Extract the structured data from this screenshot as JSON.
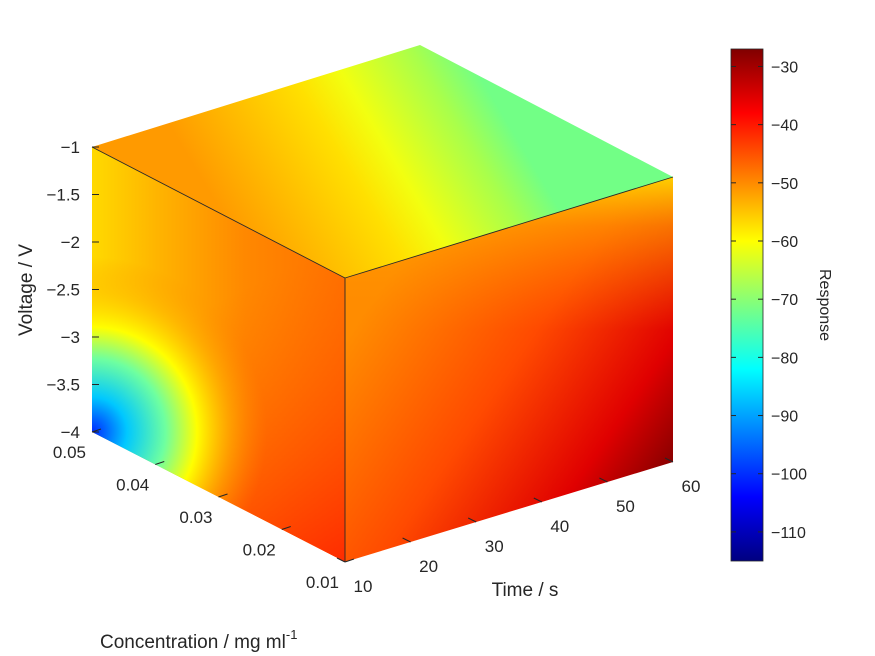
{
  "chart_data": {
    "type": "heatmap",
    "subtype": "3d-slice-cube",
    "title": "",
    "axes": {
      "x": {
        "label": "Time / s",
        "range": [
          10,
          60
        ],
        "ticks": [
          10,
          20,
          30,
          40,
          50,
          60
        ]
      },
      "y": {
        "label_main": "Concentration / mg ml",
        "label_sup": "-1",
        "range": [
          0.01,
          0.05
        ],
        "ticks": [
          0.01,
          0.02,
          0.03,
          0.04,
          0.05
        ]
      },
      "z": {
        "label": "Voltage / V",
        "range": [
          -4,
          -1
        ],
        "ticks": [
          -1,
          -1.5,
          -2,
          -2.5,
          -3,
          -3.5,
          -4
        ]
      }
    },
    "colorbar": {
      "label": "Response",
      "range": [
        -115,
        -27
      ],
      "ticks": [
        -30,
        -40,
        -50,
        -60,
        -70,
        -80,
        -90,
        -100,
        -110
      ],
      "colormap": "jet"
    },
    "corner_values": [
      {
        "time": 10,
        "concentration": 0.05,
        "voltage": -4,
        "response": -103
      },
      {
        "time": 10,
        "concentration": 0.05,
        "voltage": -1,
        "response": -52
      },
      {
        "time": 10,
        "concentration": 0.01,
        "voltage": -1,
        "response": -52
      },
      {
        "time": 10,
        "concentration": 0.01,
        "voltage": -4,
        "response": -45
      },
      {
        "time": 60,
        "concentration": 0.01,
        "voltage": -4,
        "response": -27
      },
      {
        "time": 60,
        "concentration": 0.01,
        "voltage": -1,
        "response": -58
      },
      {
        "time": 60,
        "concentration": 0.05,
        "voltage": -1,
        "response": -72
      }
    ],
    "grid": false,
    "legend": "colorbar-right"
  }
}
